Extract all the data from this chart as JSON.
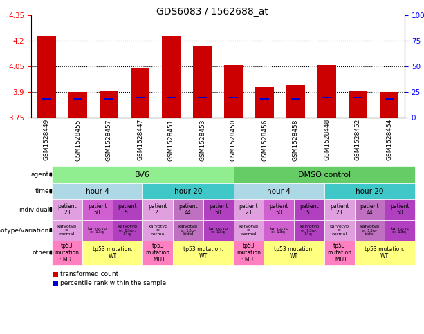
{
  "title": "GDS6083 / 1562688_at",
  "samples": [
    "GSM1528449",
    "GSM1528455",
    "GSM1528457",
    "GSM1528447",
    "GSM1528451",
    "GSM1528453",
    "GSM1528450",
    "GSM1528456",
    "GSM1528458",
    "GSM1528448",
    "GSM1528452",
    "GSM1528454"
  ],
  "bar_values": [
    4.23,
    3.9,
    3.91,
    4.04,
    4.23,
    4.17,
    4.06,
    3.93,
    3.94,
    4.06,
    3.91,
    3.9
  ],
  "blue_values": [
    3.86,
    3.86,
    3.86,
    3.87,
    3.87,
    3.87,
    3.87,
    3.86,
    3.86,
    3.87,
    3.87,
    3.86
  ],
  "bar_bottom": 3.75,
  "ylim": [
    3.75,
    4.35
  ],
  "yticks_left": [
    3.75,
    3.9,
    4.05,
    4.2,
    4.35
  ],
  "yticks_right": [
    0,
    25,
    50,
    75,
    100
  ],
  "ytick_right_labels": [
    "0",
    "25",
    "50",
    "75",
    "100%"
  ],
  "bar_color": "#cc0000",
  "blue_color": "#0000cc",
  "row_labels": [
    "agent",
    "time",
    "individual",
    "genotype/variation",
    "other"
  ],
  "agent_groups": [
    {
      "label": "BV6",
      "start": 0,
      "end": 6,
      "color": "#90ee90"
    },
    {
      "label": "DMSO control",
      "start": 6,
      "end": 12,
      "color": "#66cc66"
    }
  ],
  "time_groups": [
    {
      "label": "hour 4",
      "start": 0,
      "end": 3,
      "color": "#add8e6"
    },
    {
      "label": "hour 20",
      "start": 3,
      "end": 6,
      "color": "#40c8c8"
    },
    {
      "label": "hour 4",
      "start": 6,
      "end": 9,
      "color": "#add8e6"
    },
    {
      "label": "hour 20",
      "start": 9,
      "end": 12,
      "color": "#40c8c8"
    }
  ],
  "individual_values": [
    "patient\n23",
    "patient\n50",
    "patient\n51",
    "patient\n23",
    "patient\n44",
    "patient\n50",
    "patient\n23",
    "patient\n50",
    "patient\n51",
    "patient\n23",
    "patient\n44",
    "patient\n50"
  ],
  "individual_colors": [
    "#e0a0e0",
    "#d060d0",
    "#b040c0",
    "#e0a0e0",
    "#c070c0",
    "#b040c0",
    "#e0a0e0",
    "#d060d0",
    "#b040c0",
    "#e0a0e0",
    "#c070c0",
    "#b040c0"
  ],
  "genotype_values": [
    "karyotyp\ne:\nnormal",
    "karyotyp\ne: 13q-",
    "karyotyp\ne: 13q-,\n14q-",
    "karyotyp\ne:\nnormal",
    "karyotyp\ne: 13q-\nbidel",
    "karyotyp\ne: 13q-",
    "karyotyp\ne:\nnormal",
    "karyotyp\ne: 13q-",
    "karyotyp\ne: 13q-,\n14q-",
    "karyotyp\ne:\nnormal",
    "karyotyp\ne: 13q-\nbidel",
    "karyotyp\ne: 13q-"
  ],
  "genotype_colors": [
    "#e0a0e0",
    "#d060d0",
    "#b040c0",
    "#e0a0e0",
    "#c070c0",
    "#b040c0",
    "#e0a0e0",
    "#d060d0",
    "#b040c0",
    "#e0a0e0",
    "#c070c0",
    "#b040c0"
  ],
  "other_spans": [
    {
      "label": "tp53\nmutation\n: MUT",
      "start": 0,
      "end": 1,
      "color": "#ff80c0"
    },
    {
      "label": "tp53 mutation:\nWT",
      "start": 1,
      "end": 3,
      "color": "#ffff80"
    },
    {
      "label": "tp53\nmutation\n: MUT",
      "start": 3,
      "end": 4,
      "color": "#ff80c0"
    },
    {
      "label": "tp53 mutation:\nWT",
      "start": 4,
      "end": 6,
      "color": "#ffff80"
    },
    {
      "label": "tp53\nmutation\n: MUT",
      "start": 6,
      "end": 7,
      "color": "#ff80c0"
    },
    {
      "label": "tp53 mutation:\nWT",
      "start": 7,
      "end": 9,
      "color": "#ffff80"
    },
    {
      "label": "tp53\nmutation\n: MUT",
      "start": 9,
      "end": 10,
      "color": "#ff80c0"
    },
    {
      "label": "tp53 mutation:\nWT",
      "start": 10,
      "end": 12,
      "color": "#ffff80"
    }
  ],
  "legend_items": [
    {
      "label": "transformed count",
      "color": "#cc0000"
    },
    {
      "label": "percentile rank within the sample",
      "color": "#0000cc"
    }
  ]
}
